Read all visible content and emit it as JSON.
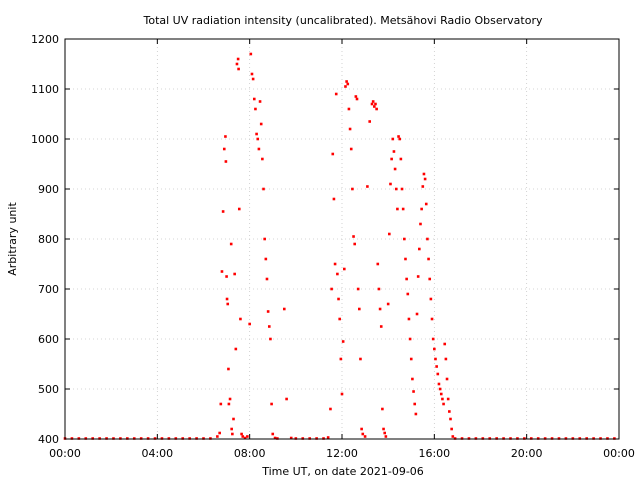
{
  "chart_data": {
    "type": "scatter",
    "title": "Total UV radiation intensity (uncalibrated). Metsähovi Radio Observatory",
    "xlabel": "Time UT, on date 2021-09-06",
    "ylabel": "Arbitrary unit",
    "xlim": [
      0,
      24
    ],
    "ylim": [
      400,
      1200
    ],
    "x_ticks": [
      0,
      4,
      8,
      12,
      16,
      20,
      24
    ],
    "x_tick_labels": [
      "00:00",
      "04:00",
      "08:00",
      "12:00",
      "16:00",
      "20:00",
      "00:00"
    ],
    "y_ticks": [
      400,
      500,
      600,
      700,
      800,
      900,
      1000,
      1100,
      1200
    ],
    "y_tick_labels": [
      "400",
      "500",
      "600",
      "700",
      "800",
      "900",
      "1000",
      "1100",
      "1200"
    ],
    "grid": true,
    "point_color": "#ff0000",
    "series": [
      {
        "name": "",
        "points": [
          [
            0.0,
            401
          ],
          [
            0.3,
            401
          ],
          [
            0.6,
            401
          ],
          [
            0.9,
            401
          ],
          [
            1.2,
            401
          ],
          [
            1.5,
            401
          ],
          [
            1.8,
            401
          ],
          [
            2.1,
            401
          ],
          [
            2.4,
            401
          ],
          [
            2.7,
            401
          ],
          [
            3.0,
            401
          ],
          [
            3.3,
            401
          ],
          [
            3.6,
            401
          ],
          [
            3.9,
            401
          ],
          [
            4.2,
            401
          ],
          [
            4.5,
            401
          ],
          [
            4.8,
            401
          ],
          [
            5.1,
            401
          ],
          [
            5.4,
            401
          ],
          [
            5.7,
            401
          ],
          [
            6.0,
            401
          ],
          [
            6.3,
            401
          ],
          [
            6.6,
            405
          ],
          [
            6.7,
            412
          ],
          [
            6.75,
            470
          ],
          [
            6.8,
            735
          ],
          [
            6.85,
            855
          ],
          [
            6.9,
            980
          ],
          [
            6.95,
            1005
          ],
          [
            6.97,
            955
          ],
          [
            7.0,
            725
          ],
          [
            7.02,
            680
          ],
          [
            7.05,
            670
          ],
          [
            7.08,
            540
          ],
          [
            7.1,
            470
          ],
          [
            7.15,
            480
          ],
          [
            7.2,
            790
          ],
          [
            7.22,
            420
          ],
          [
            7.25,
            410
          ],
          [
            7.3,
            440
          ],
          [
            7.35,
            730
          ],
          [
            7.4,
            580
          ],
          [
            7.45,
            1150
          ],
          [
            7.5,
            1160
          ],
          [
            7.52,
            1140
          ],
          [
            7.55,
            860
          ],
          [
            7.6,
            640
          ],
          [
            7.65,
            410
          ],
          [
            7.7,
            405
          ],
          [
            7.8,
            402
          ],
          [
            7.9,
            405
          ],
          [
            8.0,
            630
          ],
          [
            8.05,
            1170
          ],
          [
            8.1,
            1130
          ],
          [
            8.15,
            1120
          ],
          [
            8.2,
            1080
          ],
          [
            8.25,
            1060
          ],
          [
            8.3,
            1010
          ],
          [
            8.35,
            1000
          ],
          [
            8.4,
            980
          ],
          [
            8.45,
            1075
          ],
          [
            8.5,
            1030
          ],
          [
            8.55,
            960
          ],
          [
            8.6,
            900
          ],
          [
            8.65,
            800
          ],
          [
            8.7,
            760
          ],
          [
            8.75,
            720
          ],
          [
            8.8,
            655
          ],
          [
            8.85,
            625
          ],
          [
            8.9,
            600
          ],
          [
            8.95,
            470
          ],
          [
            9.0,
            410
          ],
          [
            9.1,
            402
          ],
          [
            9.2,
            401
          ],
          [
            9.5,
            660
          ],
          [
            9.6,
            480
          ],
          [
            9.8,
            402
          ],
          [
            10.0,
            401
          ],
          [
            10.3,
            401
          ],
          [
            10.6,
            401
          ],
          [
            10.9,
            401
          ],
          [
            11.2,
            401
          ],
          [
            11.4,
            403
          ],
          [
            11.5,
            460
          ],
          [
            11.55,
            700
          ],
          [
            11.6,
            970
          ],
          [
            11.65,
            880
          ],
          [
            11.7,
            750
          ],
          [
            11.75,
            1090
          ],
          [
            11.8,
            730
          ],
          [
            11.85,
            680
          ],
          [
            11.9,
            640
          ],
          [
            11.95,
            560
          ],
          [
            12.0,
            490
          ],
          [
            12.05,
            595
          ],
          [
            12.1,
            740
          ],
          [
            12.15,
            1105
          ],
          [
            12.2,
            1115
          ],
          [
            12.25,
            1110
          ],
          [
            12.3,
            1060
          ],
          [
            12.35,
            1020
          ],
          [
            12.4,
            980
          ],
          [
            12.45,
            900
          ],
          [
            12.5,
            805
          ],
          [
            12.55,
            790
          ],
          [
            12.6,
            1085
          ],
          [
            12.65,
            1080
          ],
          [
            12.7,
            700
          ],
          [
            12.75,
            660
          ],
          [
            12.8,
            560
          ],
          [
            12.85,
            420
          ],
          [
            12.9,
            410
          ],
          [
            13.0,
            405
          ],
          [
            13.1,
            905
          ],
          [
            13.2,
            1035
          ],
          [
            13.3,
            1070
          ],
          [
            13.35,
            1075
          ],
          [
            13.4,
            1065
          ],
          [
            13.45,
            1070
          ],
          [
            13.5,
            1060
          ],
          [
            13.55,
            750
          ],
          [
            13.6,
            700
          ],
          [
            13.65,
            660
          ],
          [
            13.7,
            625
          ],
          [
            13.75,
            460
          ],
          [
            13.8,
            420
          ],
          [
            13.85,
            412
          ],
          [
            13.9,
            405
          ],
          [
            14.0,
            670
          ],
          [
            14.05,
            810
          ],
          [
            14.1,
            910
          ],
          [
            14.15,
            960
          ],
          [
            14.2,
            1000
          ],
          [
            14.25,
            975
          ],
          [
            14.3,
            940
          ],
          [
            14.35,
            900
          ],
          [
            14.4,
            860
          ],
          [
            14.45,
            1005
          ],
          [
            14.5,
            1000
          ],
          [
            14.55,
            960
          ],
          [
            14.6,
            900
          ],
          [
            14.65,
            860
          ],
          [
            14.7,
            800
          ],
          [
            14.75,
            760
          ],
          [
            14.8,
            720
          ],
          [
            14.85,
            690
          ],
          [
            14.9,
            640
          ],
          [
            14.95,
            600
          ],
          [
            15.0,
            560
          ],
          [
            15.05,
            520
          ],
          [
            15.1,
            495
          ],
          [
            15.15,
            470
          ],
          [
            15.2,
            450
          ],
          [
            15.25,
            650
          ],
          [
            15.3,
            725
          ],
          [
            15.35,
            780
          ],
          [
            15.4,
            830
          ],
          [
            15.45,
            860
          ],
          [
            15.5,
            905
          ],
          [
            15.55,
            930
          ],
          [
            15.6,
            920
          ],
          [
            15.65,
            870
          ],
          [
            15.7,
            800
          ],
          [
            15.75,
            760
          ],
          [
            15.8,
            720
          ],
          [
            15.85,
            680
          ],
          [
            15.9,
            640
          ],
          [
            15.95,
            600
          ],
          [
            16.0,
            580
          ],
          [
            16.05,
            560
          ],
          [
            16.1,
            545
          ],
          [
            16.15,
            530
          ],
          [
            16.2,
            510
          ],
          [
            16.25,
            500
          ],
          [
            16.3,
            490
          ],
          [
            16.35,
            480
          ],
          [
            16.4,
            470
          ],
          [
            16.45,
            590
          ],
          [
            16.5,
            560
          ],
          [
            16.55,
            520
          ],
          [
            16.6,
            480
          ],
          [
            16.65,
            455
          ],
          [
            16.7,
            440
          ],
          [
            16.75,
            420
          ],
          [
            16.8,
            405
          ],
          [
            16.9,
            401
          ],
          [
            17.2,
            401
          ],
          [
            17.5,
            401
          ],
          [
            17.8,
            401
          ],
          [
            18.1,
            401
          ],
          [
            18.4,
            401
          ],
          [
            18.7,
            401
          ],
          [
            19.0,
            401
          ],
          [
            19.3,
            401
          ],
          [
            19.6,
            401
          ],
          [
            19.9,
            401
          ],
          [
            20.2,
            401
          ],
          [
            20.5,
            401
          ],
          [
            20.8,
            401
          ],
          [
            21.1,
            401
          ],
          [
            21.4,
            401
          ],
          [
            21.7,
            401
          ],
          [
            22.0,
            401
          ],
          [
            22.3,
            401
          ],
          [
            22.6,
            401
          ],
          [
            22.9,
            401
          ],
          [
            23.2,
            401
          ],
          [
            23.5,
            401
          ],
          [
            23.8,
            401
          ]
        ]
      }
    ]
  }
}
